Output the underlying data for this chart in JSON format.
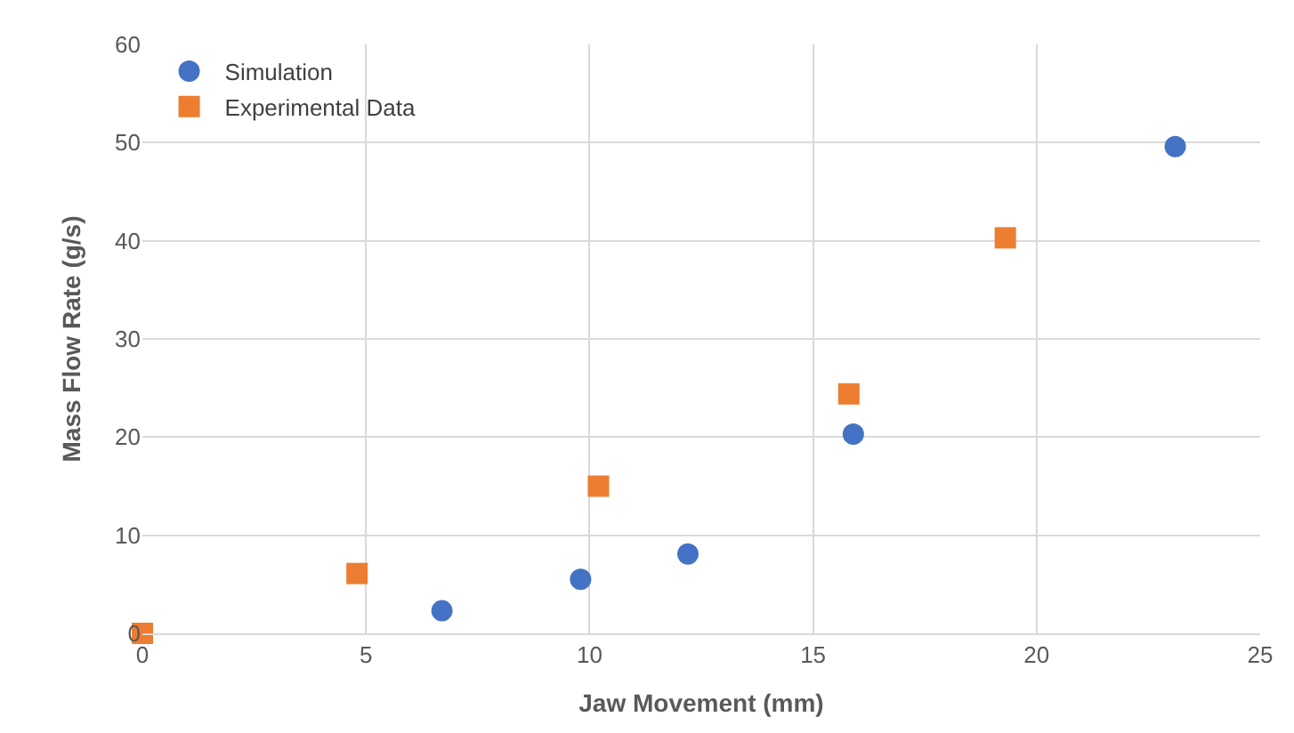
{
  "chart_data": {
    "type": "scatter",
    "xlabel": "Jaw Movement (mm)",
    "ylabel": "Mass Flow Rate (g/s)",
    "xlim": [
      0,
      25
    ],
    "xticks": [
      0,
      5,
      10,
      15,
      20,
      25
    ],
    "ylim": [
      0,
      60
    ],
    "yticks": [
      0,
      10,
      20,
      30,
      40,
      50,
      60
    ],
    "grid": true,
    "legend": "top left",
    "series": [
      {
        "name": "Simulation",
        "color": "#4472c4",
        "marker": "circle",
        "x": [
          6.7,
          9.8,
          12.2,
          15.9,
          23.1
        ],
        "values": [
          2.3,
          5.5,
          8.1,
          20.3,
          49.6
        ]
      },
      {
        "name": "Experimental Data",
        "color": "#ed7d31",
        "marker": "square",
        "x": [
          0,
          4.8,
          10.2,
          15.8,
          19.3
        ],
        "values": [
          0,
          6.1,
          15.0,
          24.4,
          40.3
        ]
      }
    ]
  }
}
